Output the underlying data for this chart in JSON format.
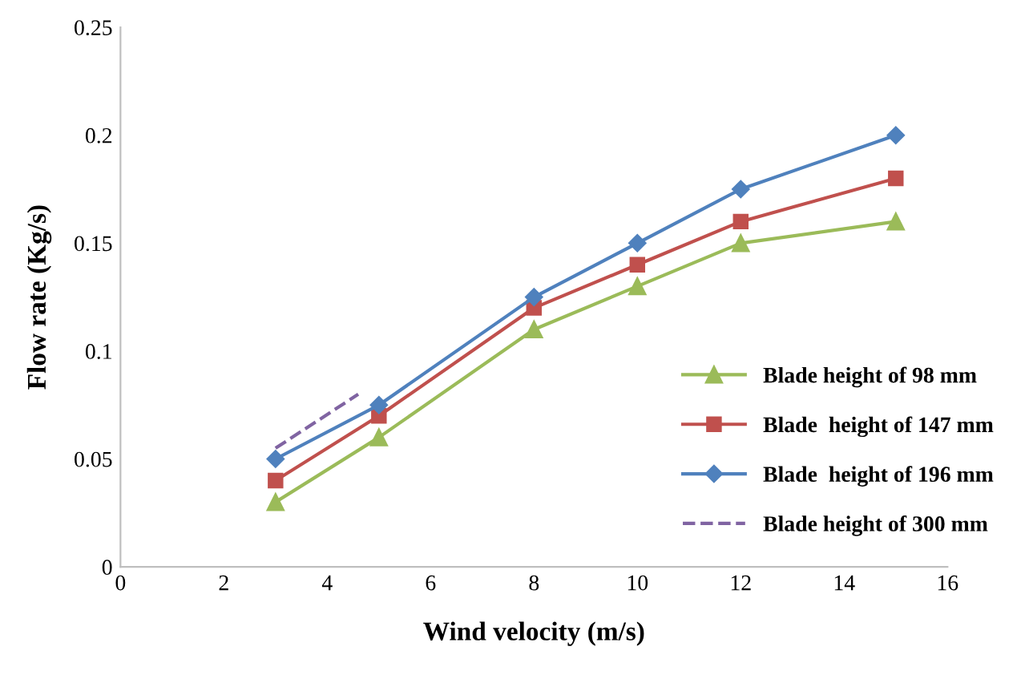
{
  "chart_data": {
    "type": "line",
    "xlabel": "Wind velocity (m/s)",
    "ylabel": "Flow rate (Kg/s)",
    "xlim": [
      0,
      16
    ],
    "xticks": [
      0,
      2,
      4,
      6,
      8,
      10,
      12,
      14,
      16
    ],
    "ylim": [
      0,
      0.25
    ],
    "yticks": [
      0,
      0.05,
      0.1,
      0.15,
      0.2,
      0.25
    ],
    "grid": false,
    "legend": "bottom right",
    "series": [
      {
        "name": "Blade height of 98 mm",
        "color": "#9bbb59",
        "marker": "triangle",
        "line_style": "solid",
        "x": [
          3,
          5,
          8,
          10,
          12,
          15
        ],
        "values": [
          0.03,
          0.06,
          0.11,
          0.13,
          0.15,
          0.16
        ]
      },
      {
        "name": "Blade  height of 147 mm",
        "color": "#c0504d",
        "marker": "square",
        "line_style": "solid",
        "x": [
          3,
          5,
          8,
          10,
          12,
          15
        ],
        "values": [
          0.04,
          0.07,
          0.12,
          0.14,
          0.16,
          0.18
        ]
      },
      {
        "name": "Blade  height of 196 mm",
        "color": "#4f81bd",
        "marker": "diamond",
        "line_style": "solid",
        "x": [
          3,
          5,
          8,
          10,
          12,
          15
        ],
        "values": [
          0.05,
          0.075,
          0.125,
          0.15,
          0.175,
          0.2
        ]
      },
      {
        "name": "Blade height of 300 mm",
        "color": "#8064a2",
        "marker": "none",
        "line_style": "dashed",
        "x": [
          3,
          4.6
        ],
        "values": [
          0.055,
          0.08
        ]
      }
    ]
  }
}
